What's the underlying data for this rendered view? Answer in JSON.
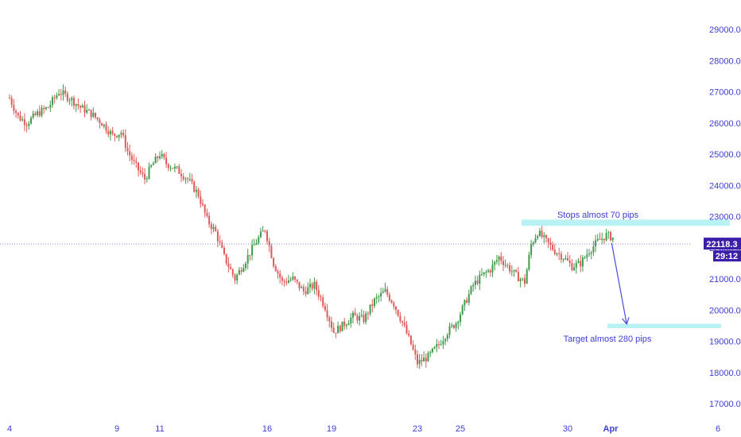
{
  "chart_data": {
    "type": "candlestick",
    "y_ticks": [
      "29000.0",
      "28000.0",
      "27000.0",
      "26000.0",
      "25000.0",
      "24000.0",
      "23000.0",
      "22000.0",
      "21000.0",
      "20000.0",
      "19000.0",
      "18000.0",
      "17000.0"
    ],
    "y_tick_values": [
      29000,
      28000,
      27000,
      26000,
      25000,
      24000,
      23000,
      22000,
      21000,
      20000,
      19000,
      18000,
      17000
    ],
    "x_ticks": [
      {
        "label": "4",
        "day": 4
      },
      {
        "label": "9",
        "day": 9
      },
      {
        "label": "11",
        "day": 11
      },
      {
        "label": "16",
        "day": 16
      },
      {
        "label": "19",
        "day": 19
      },
      {
        "label": "23",
        "day": 23
      },
      {
        "label": "25",
        "day": 25
      },
      {
        "label": "30",
        "day": 30
      },
      {
        "label": "Apr",
        "day": 32,
        "bold": true
      },
      {
        "label": "6",
        "day": 37
      }
    ],
    "ylim": [
      16500,
      29800
    ],
    "current_price": 22118.3,
    "current_price_label": "22118.3",
    "countdown_label": "29:12",
    "close_path": [
      [
        4.0,
        26800
      ],
      [
        4.4,
        26200
      ],
      [
        4.8,
        26000
      ],
      [
        5.3,
        26300
      ],
      [
        5.8,
        26500
      ],
      [
        6.3,
        27000
      ],
      [
        6.8,
        26800
      ],
      [
        7.3,
        26500
      ],
      [
        7.8,
        26300
      ],
      [
        8.3,
        26000
      ],
      [
        8.8,
        25600
      ],
      [
        9.2,
        25700
      ],
      [
        9.5,
        25100
      ],
      [
        9.8,
        24700
      ],
      [
        10.3,
        24200
      ],
      [
        10.6,
        24600
      ],
      [
        11.0,
        25000
      ],
      [
        11.3,
        24700
      ],
      [
        11.8,
        24500
      ],
      [
        12.3,
        24200
      ],
      [
        12.8,
        23700
      ],
      [
        13.2,
        22900
      ],
      [
        13.6,
        22500
      ],
      [
        14.0,
        21700
      ],
      [
        14.5,
        21000
      ],
      [
        15.0,
        21600
      ],
      [
        15.5,
        22200
      ],
      [
        15.9,
        22600
      ],
      [
        16.3,
        21500
      ],
      [
        16.7,
        20900
      ],
      [
        17.2,
        21000
      ],
      [
        17.7,
        20600
      ],
      [
        18.2,
        20800
      ],
      [
        18.7,
        20100
      ],
      [
        19.1,
        19300
      ],
      [
        19.5,
        19500
      ],
      [
        20.0,
        19800
      ],
      [
        20.5,
        19700
      ],
      [
        21.0,
        20300
      ],
      [
        21.5,
        20600
      ],
      [
        21.9,
        20200
      ],
      [
        22.3,
        19600
      ],
      [
        22.7,
        18900
      ],
      [
        23.0,
        18300
      ],
      [
        23.5,
        18500
      ],
      [
        24.0,
        18900
      ],
      [
        24.4,
        19300
      ],
      [
        24.8,
        19600
      ],
      [
        25.2,
        20200
      ],
      [
        25.6,
        20800
      ],
      [
        26.0,
        21100
      ],
      [
        26.4,
        21300
      ],
      [
        26.8,
        21700
      ],
      [
        27.2,
        21400
      ],
      [
        27.6,
        21100
      ],
      [
        28.0,
        20900
      ],
      [
        28.3,
        22100
      ],
      [
        28.6,
        22500
      ],
      [
        29.0,
        22200
      ],
      [
        29.4,
        21900
      ],
      [
        29.8,
        21700
      ],
      [
        30.2,
        21400
      ],
      [
        30.6,
        21500
      ],
      [
        31.0,
        21900
      ],
      [
        31.4,
        22200
      ],
      [
        31.8,
        22400
      ],
      [
        32.2,
        22300
      ]
    ],
    "volatility": 260,
    "candle_spacing_days": 0.1,
    "annotations": [
      {
        "text": "Stops almost 70 pips",
        "y_from": 22700,
        "y_to": 22900,
        "day_from": 27.85,
        "day_to": 37.55
      },
      {
        "text": "Target almost 280 pips",
        "y_from": 19420,
        "y_to": 19560,
        "day_from": 31.85,
        "day_to": 37.15
      }
    ],
    "forecast_arrow": {
      "from": [
        32.05,
        22150
      ],
      "to": [
        32.75,
        19550
      ]
    },
    "colors": {
      "up": "#3f9b4b",
      "down": "#e05a5a",
      "axis_text": "#3c3cd6",
      "zone": "#b9f2f5",
      "arrow": "#4a4ae0",
      "price_badge": "#3c1fa8",
      "countdown_badge": "#3c1fa8",
      "price_line": "#8c8cd9"
    }
  }
}
